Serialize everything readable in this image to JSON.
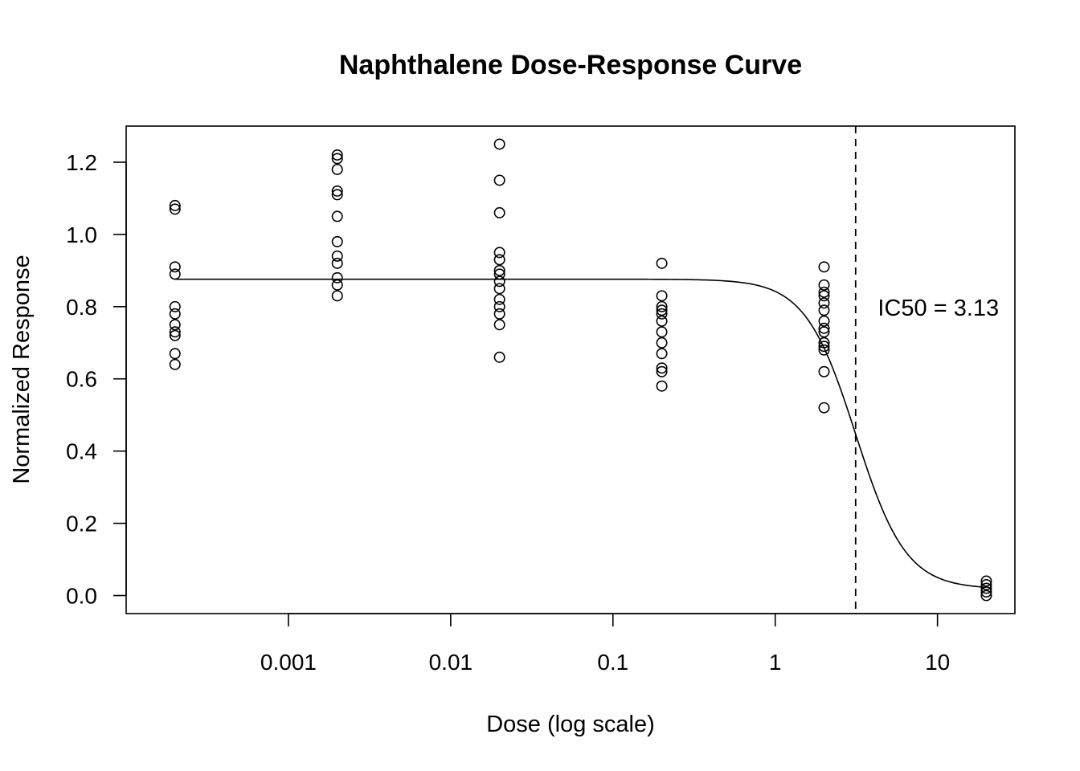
{
  "chart_data": {
    "type": "scatter",
    "title": "Naphthalene Dose-Response Curve",
    "xlabel": "Dose (log scale)",
    "ylabel": "Normalized Response",
    "x_scale": "log",
    "xlim": [
      0.0001,
      30
    ],
    "ylim": [
      -0.05,
      1.3
    ],
    "x_ticks": [
      {
        "value": 0.001,
        "label": "0.001"
      },
      {
        "value": 0.01,
        "label": "0.01"
      },
      {
        "value": 0.1,
        "label": "0.1"
      },
      {
        "value": 1,
        "label": "1"
      },
      {
        "value": 10,
        "label": "10"
      }
    ],
    "y_ticks": [
      {
        "value": 0.0,
        "label": "0.0"
      },
      {
        "value": 0.2,
        "label": "0.2"
      },
      {
        "value": 0.4,
        "label": "0.4"
      },
      {
        "value": 0.6,
        "label": "0.6"
      },
      {
        "value": 0.8,
        "label": "0.8"
      },
      {
        "value": 1.0,
        "label": "1.0"
      },
      {
        "value": 1.2,
        "label": "1.2"
      }
    ],
    "grid": false,
    "points": [
      {
        "x": 0.0002,
        "y": 1.08
      },
      {
        "x": 0.0002,
        "y": 1.07
      },
      {
        "x": 0.0002,
        "y": 0.91
      },
      {
        "x": 0.0002,
        "y": 0.89
      },
      {
        "x": 0.0002,
        "y": 0.8
      },
      {
        "x": 0.0002,
        "y": 0.78
      },
      {
        "x": 0.0002,
        "y": 0.75
      },
      {
        "x": 0.0002,
        "y": 0.73
      },
      {
        "x": 0.0002,
        "y": 0.72
      },
      {
        "x": 0.0002,
        "y": 0.67
      },
      {
        "x": 0.0002,
        "y": 0.64
      },
      {
        "x": 0.002,
        "y": 1.22
      },
      {
        "x": 0.002,
        "y": 1.21
      },
      {
        "x": 0.002,
        "y": 1.18
      },
      {
        "x": 0.002,
        "y": 1.12
      },
      {
        "x": 0.002,
        "y": 1.11
      },
      {
        "x": 0.002,
        "y": 1.05
      },
      {
        "x": 0.002,
        "y": 0.98
      },
      {
        "x": 0.002,
        "y": 0.94
      },
      {
        "x": 0.002,
        "y": 0.92
      },
      {
        "x": 0.002,
        "y": 0.88
      },
      {
        "x": 0.002,
        "y": 0.86
      },
      {
        "x": 0.002,
        "y": 0.83
      },
      {
        "x": 0.02,
        "y": 1.25
      },
      {
        "x": 0.02,
        "y": 1.15
      },
      {
        "x": 0.02,
        "y": 1.06
      },
      {
        "x": 0.02,
        "y": 0.95
      },
      {
        "x": 0.02,
        "y": 0.93
      },
      {
        "x": 0.02,
        "y": 0.9
      },
      {
        "x": 0.02,
        "y": 0.89
      },
      {
        "x": 0.02,
        "y": 0.87
      },
      {
        "x": 0.02,
        "y": 0.85
      },
      {
        "x": 0.02,
        "y": 0.82
      },
      {
        "x": 0.02,
        "y": 0.8
      },
      {
        "x": 0.02,
        "y": 0.78
      },
      {
        "x": 0.02,
        "y": 0.75
      },
      {
        "x": 0.02,
        "y": 0.66
      },
      {
        "x": 0.2,
        "y": 0.92
      },
      {
        "x": 0.2,
        "y": 0.83
      },
      {
        "x": 0.2,
        "y": 0.8
      },
      {
        "x": 0.2,
        "y": 0.79
      },
      {
        "x": 0.2,
        "y": 0.78
      },
      {
        "x": 0.2,
        "y": 0.76
      },
      {
        "x": 0.2,
        "y": 0.73
      },
      {
        "x": 0.2,
        "y": 0.7
      },
      {
        "x": 0.2,
        "y": 0.67
      },
      {
        "x": 0.2,
        "y": 0.63
      },
      {
        "x": 0.2,
        "y": 0.62
      },
      {
        "x": 0.2,
        "y": 0.58
      },
      {
        "x": 2,
        "y": 0.91
      },
      {
        "x": 2,
        "y": 0.86
      },
      {
        "x": 2,
        "y": 0.84
      },
      {
        "x": 2,
        "y": 0.83
      },
      {
        "x": 2,
        "y": 0.81
      },
      {
        "x": 2,
        "y": 0.79
      },
      {
        "x": 2,
        "y": 0.76
      },
      {
        "x": 2,
        "y": 0.74
      },
      {
        "x": 2,
        "y": 0.73
      },
      {
        "x": 2,
        "y": 0.7
      },
      {
        "x": 2,
        "y": 0.69
      },
      {
        "x": 2,
        "y": 0.68
      },
      {
        "x": 2,
        "y": 0.62
      },
      {
        "x": 2,
        "y": 0.52
      },
      {
        "x": 20,
        "y": 0.04
      },
      {
        "x": 20,
        "y": 0.03
      },
      {
        "x": 20,
        "y": 0.02
      },
      {
        "x": 20,
        "y": 0.01
      },
      {
        "x": 20,
        "y": 0.0
      }
    ],
    "fit_curve": {
      "model": "four-parameter logistic",
      "top": 0.876,
      "bottom": 0.018,
      "ic50": 3.13,
      "hill_slope": 2.8
    },
    "ic50_line": {
      "x": 3.13,
      "style": "dashed"
    },
    "annotation": {
      "text": "IC50 = 3.13"
    }
  }
}
